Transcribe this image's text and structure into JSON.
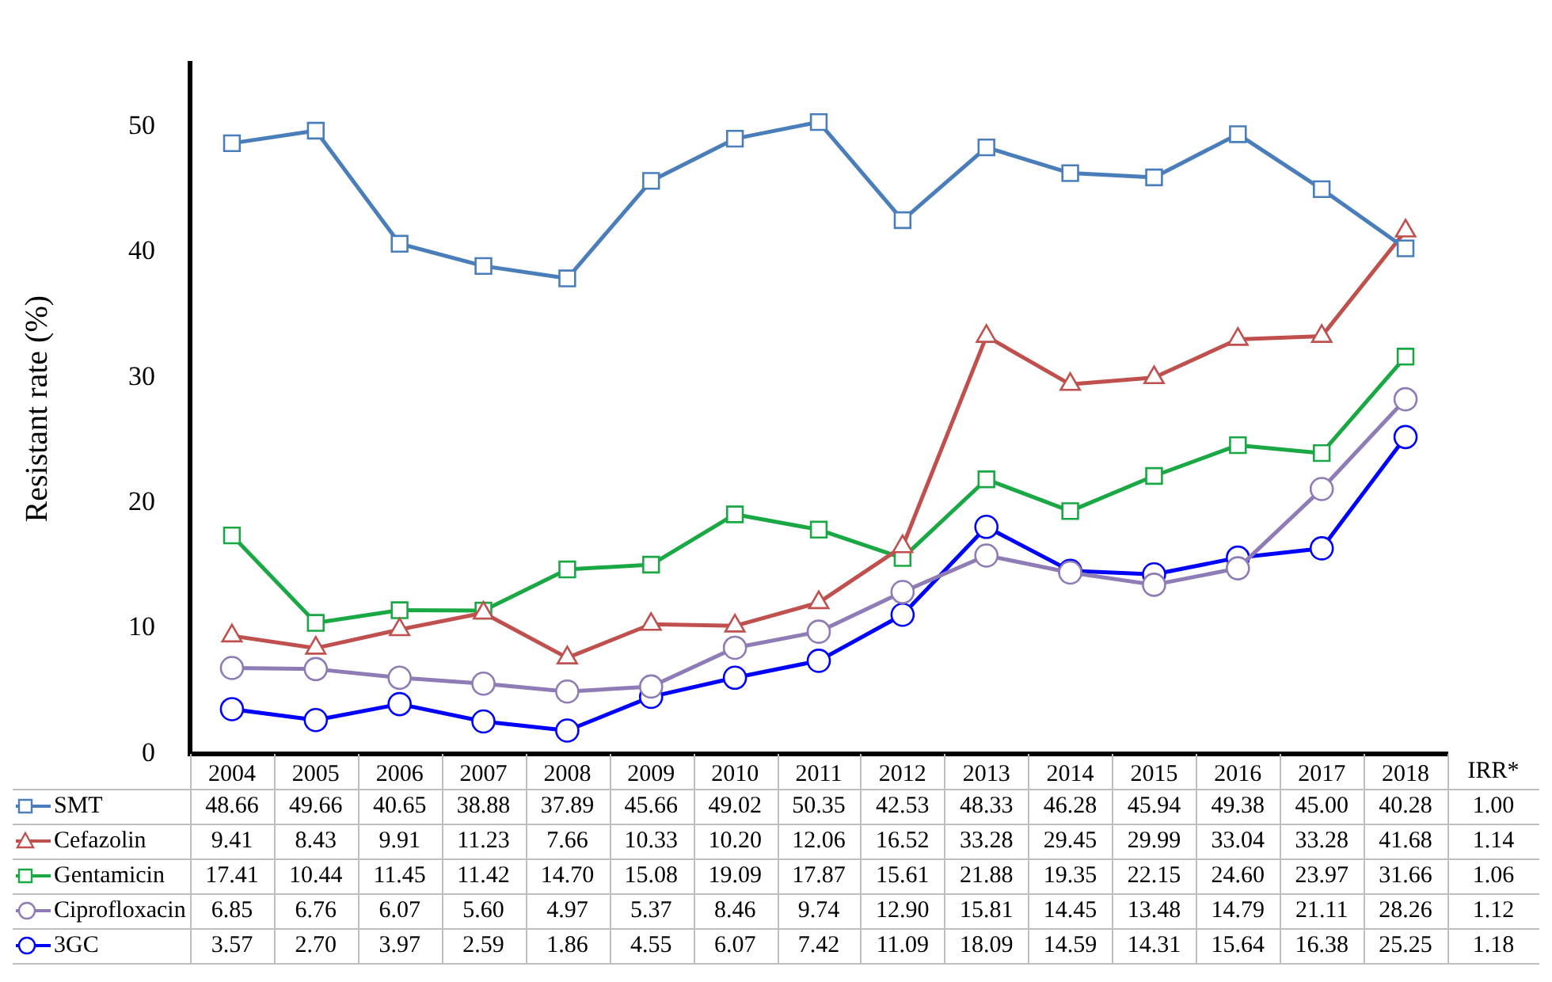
{
  "chart_data": {
    "type": "line",
    "ylabel": "Resistant rate (%)",
    "categories": [
      "2004",
      "2005",
      "2006",
      "2007",
      "2008",
      "2009",
      "2010",
      "2011",
      "2012",
      "2013",
      "2014",
      "2015",
      "2016",
      "2017",
      "2018"
    ],
    "series": [
      {
        "name": "SMT",
        "color": "#4a7ebb",
        "marker": "square",
        "values": [
          48.66,
          49.66,
          40.65,
          38.88,
          37.89,
          45.66,
          49.02,
          50.35,
          42.53,
          48.33,
          46.28,
          45.94,
          49.38,
          45.0,
          40.28
        ],
        "value_labels": [
          "48.66",
          "49.66",
          "40.65",
          "38.88",
          "37.89",
          "45.66",
          "49.02",
          "50.35",
          "42.53",
          "48.33",
          "46.28",
          "45.94",
          "49.38",
          "45.00",
          "40.28"
        ]
      },
      {
        "name": "Cefazolin",
        "color": "#c0504d",
        "marker": "triangle",
        "values": [
          9.41,
          8.43,
          9.91,
          11.23,
          7.66,
          10.33,
          10.2,
          12.06,
          16.52,
          33.28,
          29.45,
          29.99,
          33.04,
          33.28,
          41.68
        ],
        "value_labels": [
          "9.41",
          "8.43",
          "9.91",
          "11.23",
          "7.66",
          "10.33",
          "10.20",
          "12.06",
          "16.52",
          "33.28",
          "29.45",
          "29.99",
          "33.04",
          "33.28",
          "41.68"
        ]
      },
      {
        "name": "Gentamicin",
        "color": "#1aa845",
        "marker": "square",
        "values": [
          17.41,
          10.44,
          11.45,
          11.42,
          14.7,
          15.08,
          19.09,
          17.87,
          15.61,
          21.88,
          19.35,
          22.15,
          24.6,
          23.97,
          31.66
        ],
        "value_labels": [
          "17.41",
          "10.44",
          "11.45",
          "11.42",
          "14.70",
          "15.08",
          "19.09",
          "17.87",
          "15.61",
          "21.88",
          "19.35",
          "22.15",
          "24.60",
          "23.97",
          "31.66"
        ]
      },
      {
        "name": "Ciprofloxacin",
        "color": "#8f7bb5",
        "marker": "circle",
        "values": [
          6.85,
          6.76,
          6.07,
          5.6,
          4.97,
          5.37,
          8.46,
          9.74,
          12.9,
          15.81,
          14.45,
          13.48,
          14.79,
          21.11,
          28.26
        ],
        "value_labels": [
          "6.85",
          "6.76",
          "6.07",
          "5.60",
          "4.97",
          "5.37",
          "8.46",
          "9.74",
          "12.90",
          "15.81",
          "14.45",
          "13.48",
          "14.79",
          "21.11",
          "28.26"
        ]
      },
      {
        "name": "3GC",
        "color": "#0000ff",
        "marker": "circle",
        "values": [
          3.57,
          2.7,
          3.97,
          2.59,
          1.86,
          4.55,
          6.07,
          7.42,
          11.09,
          18.09,
          14.59,
          14.31,
          15.64,
          16.38,
          25.25
        ],
        "value_labels": [
          "3.57",
          "2.70",
          "3.97",
          "2.59",
          "1.86",
          "4.55",
          "6.07",
          "7.42",
          "11.09",
          "18.09",
          "14.59",
          "14.31",
          "15.64",
          "16.38",
          "25.25"
        ]
      }
    ],
    "annotations": [
      "IRR*",
      "1.00",
      "1.14",
      "1.06",
      "1.12",
      "1.18"
    ],
    "ylim": [
      0,
      55
    ],
    "yticks": [
      0,
      10,
      20,
      30,
      40,
      50
    ],
    "grid": false,
    "legend": "bottom left",
    "line_style": "solid"
  }
}
